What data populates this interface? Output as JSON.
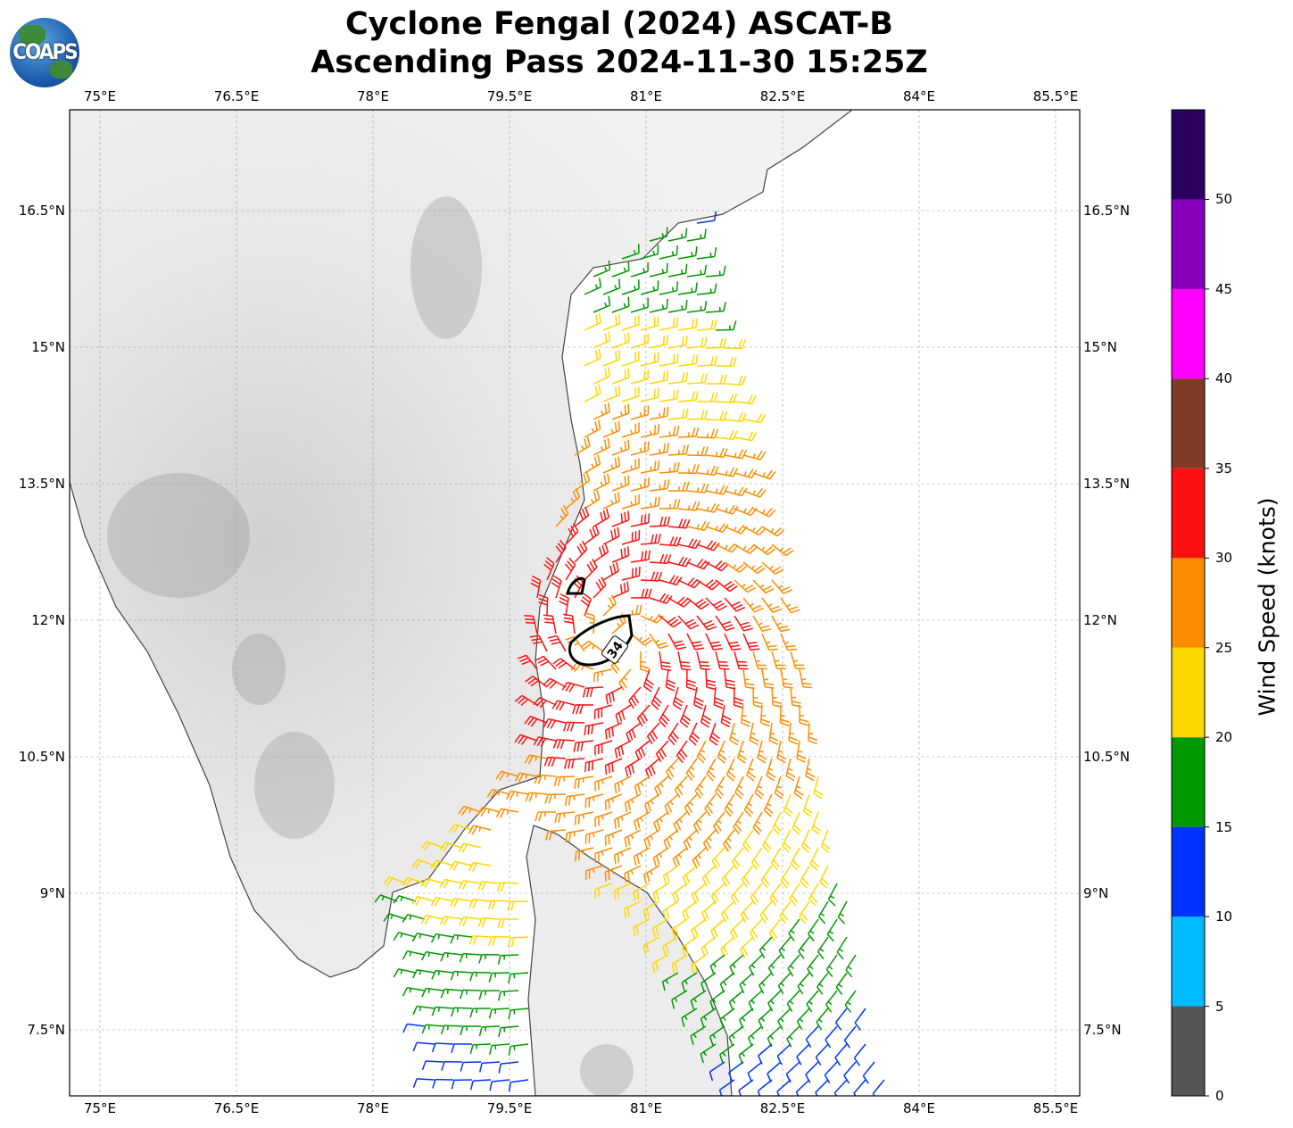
{
  "title": {
    "line1": "Cyclone Fengal (2024) ASCAT-B",
    "line2": "Ascending Pass 2024-11-30 15:25Z"
  },
  "logo": {
    "text": "COAPS"
  },
  "map": {
    "lon_ticks": [
      "75°E",
      "76.5°E",
      "78°E",
      "79.5°E",
      "81°E",
      "82.5°E",
      "84°E",
      "85.5°E"
    ],
    "lat_ticks": [
      "16.5°N",
      "15°N",
      "13.5°N",
      "12°N",
      "10.5°N",
      "9°N",
      "7.5°N"
    ],
    "contour_label": "34",
    "colors": {
      "land": "#e6e6e6",
      "ocean": "#ffffff",
      "coast": "#444444"
    }
  },
  "colorbar": {
    "label": "Wind Speed (knots)",
    "ticks": [
      "0",
      "5",
      "10",
      "15",
      "20",
      "25",
      "30",
      "35",
      "40",
      "45",
      "50"
    ],
    "range": [
      0,
      55
    ],
    "bins": [
      {
        "from": 0,
        "to": 5,
        "color": "#555555"
      },
      {
        "from": 5,
        "to": 10,
        "color": "#00bbff"
      },
      {
        "from": 10,
        "to": 15,
        "color": "#0033ff"
      },
      {
        "from": 15,
        "to": 20,
        "color": "#009900"
      },
      {
        "from": 20,
        "to": 25,
        "color": "#ffd700"
      },
      {
        "from": 25,
        "to": 30,
        "color": "#ff8c00"
      },
      {
        "from": 30,
        "to": 35,
        "color": "#ff1010"
      },
      {
        "from": 35,
        "to": 40,
        "color": "#803a26"
      },
      {
        "from": 40,
        "to": 45,
        "color": "#ff00ff"
      },
      {
        "from": 45,
        "to": 50,
        "color": "#8800bb"
      },
      {
        "from": 50,
        "to": 55,
        "color": "#2b0060"
      }
    ]
  }
}
